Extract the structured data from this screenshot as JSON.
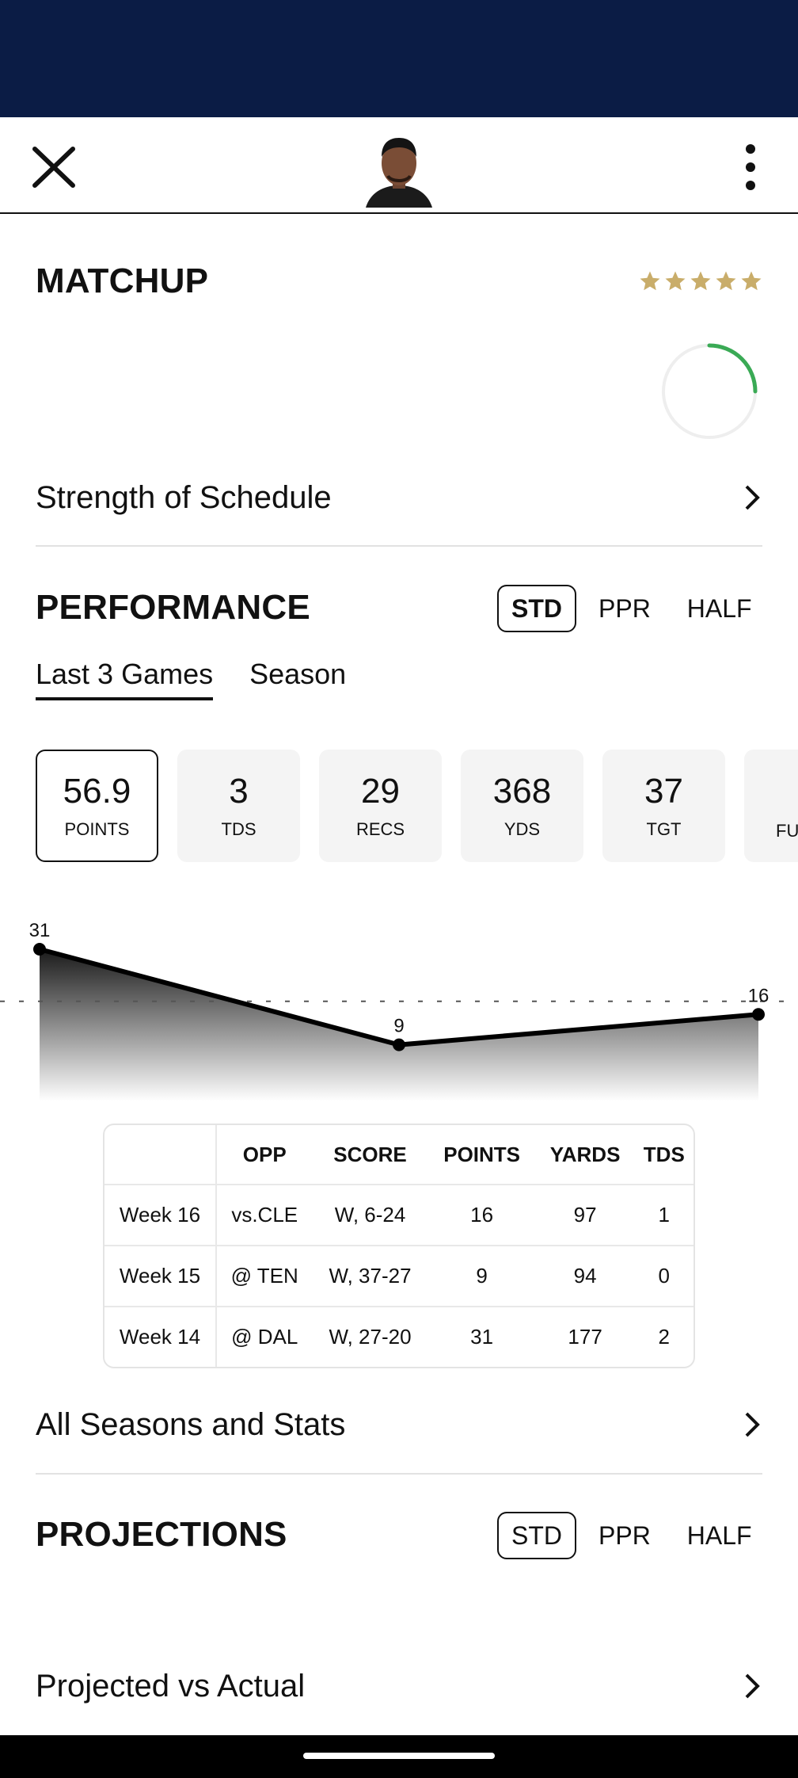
{
  "header": {
    "close_icon": "close-icon",
    "avatar": "player-headshot",
    "menu_icon": "more-vertical-icon"
  },
  "matchup": {
    "title": "MATCHUP",
    "stars": 5,
    "star_color": "#c9ad6a",
    "spinner_color": "#3aaa55",
    "strength_link": "Strength of Schedule"
  },
  "performance": {
    "title": "PERFORMANCE",
    "scoring": [
      "STD",
      "PPR",
      "HALF"
    ],
    "scoring_active": "STD",
    "tabs": [
      "Last 3 Games",
      "Season"
    ],
    "tab_active": "Last 3 Games",
    "stats": [
      {
        "value": "56.9",
        "label": "POINTS"
      },
      {
        "value": "3",
        "label": "TDS"
      },
      {
        "value": "29",
        "label": "RECS"
      },
      {
        "value": "368",
        "label": "YDS"
      },
      {
        "value": "37",
        "label": "TGT"
      },
      {
        "value": "",
        "label": "FU"
      }
    ]
  },
  "chart_data": {
    "type": "area",
    "x": [
      "Week 14",
      "Week 15",
      "Week 16"
    ],
    "values": [
      31,
      9,
      16
    ],
    "data_labels": [
      "31",
      "9",
      "16"
    ],
    "reference_line": 19,
    "ylim": [
      0,
      31
    ]
  },
  "games_table": {
    "headers": [
      "",
      "OPP",
      "SCORE",
      "POINTS",
      "YARDS",
      "TDS"
    ],
    "rows": [
      [
        "Week 16",
        "vs.CLE",
        "W, 6-24",
        "16",
        "97",
        "1"
      ],
      [
        "Week 15",
        "@ TEN",
        "W, 37-27",
        "9",
        "94",
        "0"
      ],
      [
        "Week 14",
        "@ DAL",
        "W, 27-20",
        "31",
        "177",
        "2"
      ]
    ]
  },
  "all_seasons_link": "All Seasons and Stats",
  "projections": {
    "title": "PROJECTIONS",
    "scoring": [
      "STD",
      "PPR",
      "HALF"
    ],
    "scoring_active": "STD",
    "projected_link": "Projected vs Actual"
  }
}
